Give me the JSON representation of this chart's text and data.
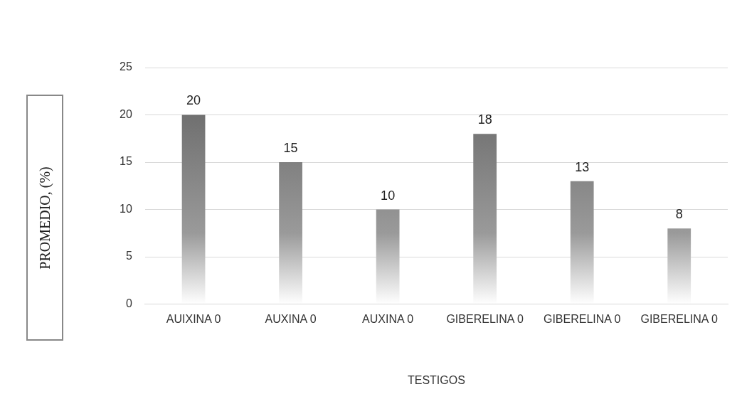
{
  "chart_data": {
    "type": "bar",
    "xlabel": "TESTIGOS",
    "ylabel": "PROMEDIO, (%)",
    "categories": [
      "AUIXINA 0",
      "AUXINA 0",
      "AUXINA 0",
      "GIBERELINA 0",
      "GIBERELINA 0",
      "GIBERELINA 0"
    ],
    "values": [
      20,
      15,
      10,
      18,
      13,
      8
    ],
    "color": "#5f5f5f",
    "ylim": [
      0,
      25
    ],
    "yticks": [
      0,
      5,
      10,
      15,
      20,
      25
    ],
    "grid": "y",
    "legend": false,
    "data_labels": true
  }
}
